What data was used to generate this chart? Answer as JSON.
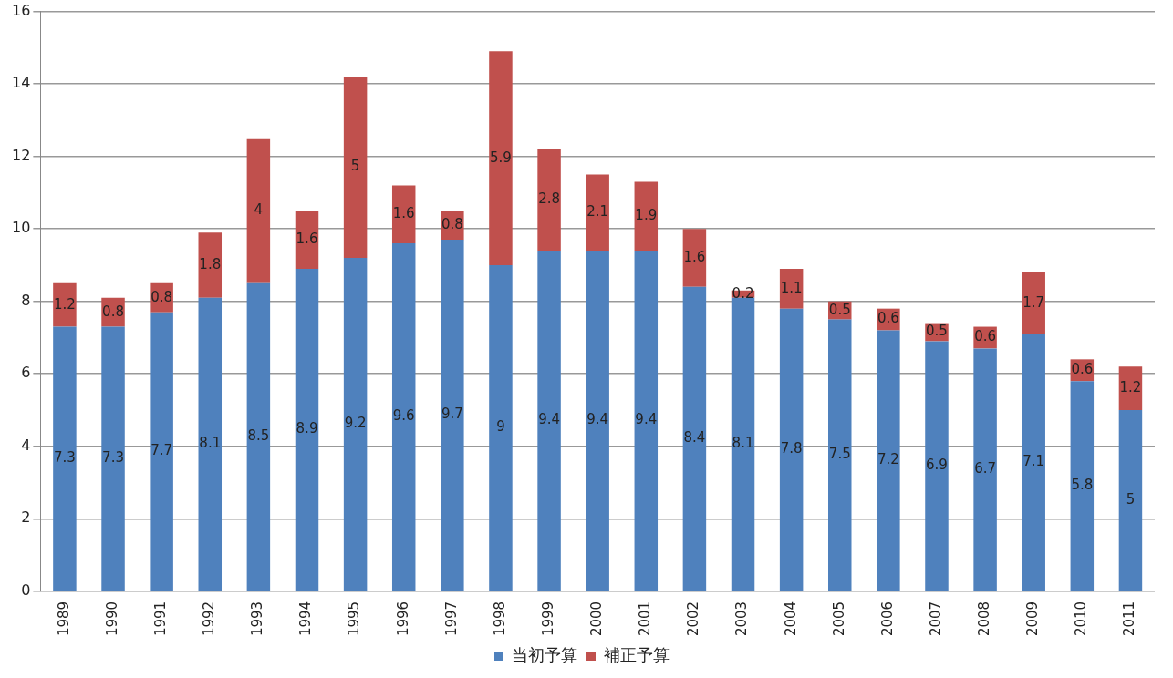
{
  "chart_data": {
    "type": "bar",
    "stacked": true,
    "data_labels": true,
    "grid": "y",
    "legend": "bottom",
    "categories": [
      "1989",
      "1990",
      "1991",
      "1992",
      "1993",
      "1994",
      "1995",
      "1996",
      "1997",
      "1998",
      "1999",
      "2000",
      "2001",
      "2002",
      "2003",
      "2004",
      "2005",
      "2006",
      "2007",
      "2008",
      "2009",
      "2010",
      "2011"
    ],
    "series": [
      {
        "name": "当初予算",
        "color": "#4f81bd",
        "values": [
          7.3,
          7.3,
          7.7,
          8.1,
          8.5,
          8.9,
          9.2,
          9.6,
          9.7,
          9,
          9.4,
          9.4,
          9.4,
          8.4,
          8.1,
          7.8,
          7.5,
          7.2,
          6.9,
          6.7,
          7.1,
          5.8,
          5
        ]
      },
      {
        "name": "補正予算",
        "color": "#c0504d",
        "values": [
          1.2,
          0.8,
          0.8,
          1.8,
          4,
          1.6,
          5,
          1.6,
          0.8,
          5.9,
          2.8,
          2.1,
          1.9,
          1.6,
          0.2,
          1.1,
          0.5,
          0.6,
          0.5,
          0.6,
          1.7,
          0.6,
          1.2
        ]
      }
    ],
    "ylim": [
      0,
      16
    ],
    "yticks": [
      0,
      2,
      4,
      6,
      8,
      10,
      12,
      14,
      16
    ]
  }
}
